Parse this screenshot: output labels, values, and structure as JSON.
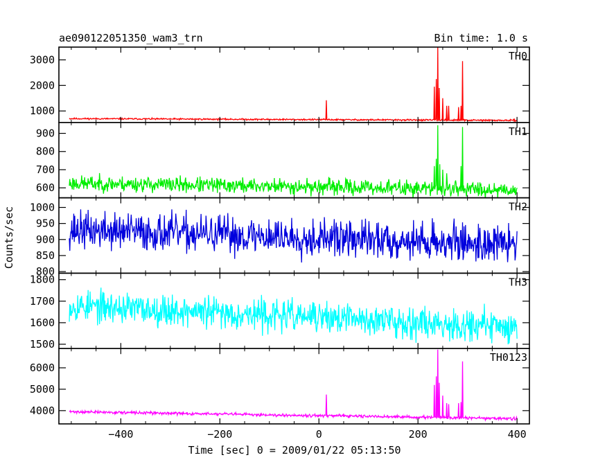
{
  "chart_data": {
    "type": "line",
    "title": "ae090122051350_wam3_trn",
    "bin_label": "Bin time: 1.0 s",
    "xlabel": "Time [sec] 0 = 2009/01/22 05:13:50",
    "ylabel": "Counts/sec",
    "xlim": [
      -525,
      425
    ],
    "xticks": [
      -400,
      -200,
      0,
      200,
      400
    ],
    "x_range": [
      -504,
      400
    ],
    "grid": false,
    "panels": [
      {
        "name": "TH0",
        "color": "#ff0000",
        "ylim": [
          550,
          3500
        ],
        "yticks": [
          1000,
          2000,
          3000
        ],
        "base_start": 700,
        "base_end": 630,
        "noise": 25,
        "seed": 11,
        "spikes": [
          [
            15,
            1420
          ],
          [
            233,
            1950
          ],
          [
            237,
            2250
          ],
          [
            240,
            3500
          ],
          [
            243,
            1900
          ],
          [
            250,
            1500
          ],
          [
            258,
            1200
          ],
          [
            262,
            1200
          ],
          [
            282,
            1150
          ],
          [
            287,
            1200
          ],
          [
            290,
            2950
          ]
        ]
      },
      {
        "name": "TH1",
        "color": "#00ee00",
        "ylim": [
          545,
          960
        ],
        "yticks": [
          600,
          700,
          800,
          900
        ],
        "base_start": 625,
        "base_end": 590,
        "noise": 35,
        "seed": 23,
        "spikes": [
          [
            233,
            720
          ],
          [
            237,
            760
          ],
          [
            240,
            945
          ],
          [
            244,
            730
          ],
          [
            250,
            700
          ],
          [
            258,
            680
          ],
          [
            287,
            720
          ],
          [
            290,
            935
          ]
        ]
      },
      {
        "name": "TH2",
        "color": "#0000dd",
        "ylim": [
          795,
          1030
        ],
        "yticks": [
          800,
          850,
          900,
          950,
          1000
        ],
        "base_start": 930,
        "base_end": 885,
        "noise": 48,
        "seed": 37,
        "spikes": []
      },
      {
        "name": "TH3",
        "color": "#00ffff",
        "ylim": [
          1480,
          1830
        ],
        "yticks": [
          1500,
          1600,
          1700,
          1800
        ],
        "base_start": 1680,
        "base_end": 1580,
        "noise": 60,
        "seed": 53,
        "spikes": []
      },
      {
        "name": "TH0123",
        "color": "#ff00ff",
        "ylim": [
          3380,
          6900
        ],
        "yticks": [
          4000,
          5000,
          6000
        ],
        "base_start": 3950,
        "base_end": 3620,
        "noise": 55,
        "seed": 71,
        "spikes": [
          [
            15,
            4750
          ],
          [
            233,
            5200
          ],
          [
            237,
            5600
          ],
          [
            240,
            6850
          ],
          [
            243,
            5300
          ],
          [
            250,
            4700
          ],
          [
            258,
            4350
          ],
          [
            262,
            4300
          ],
          [
            282,
            4350
          ],
          [
            287,
            4400
          ],
          [
            290,
            6300
          ]
        ]
      }
    ]
  }
}
